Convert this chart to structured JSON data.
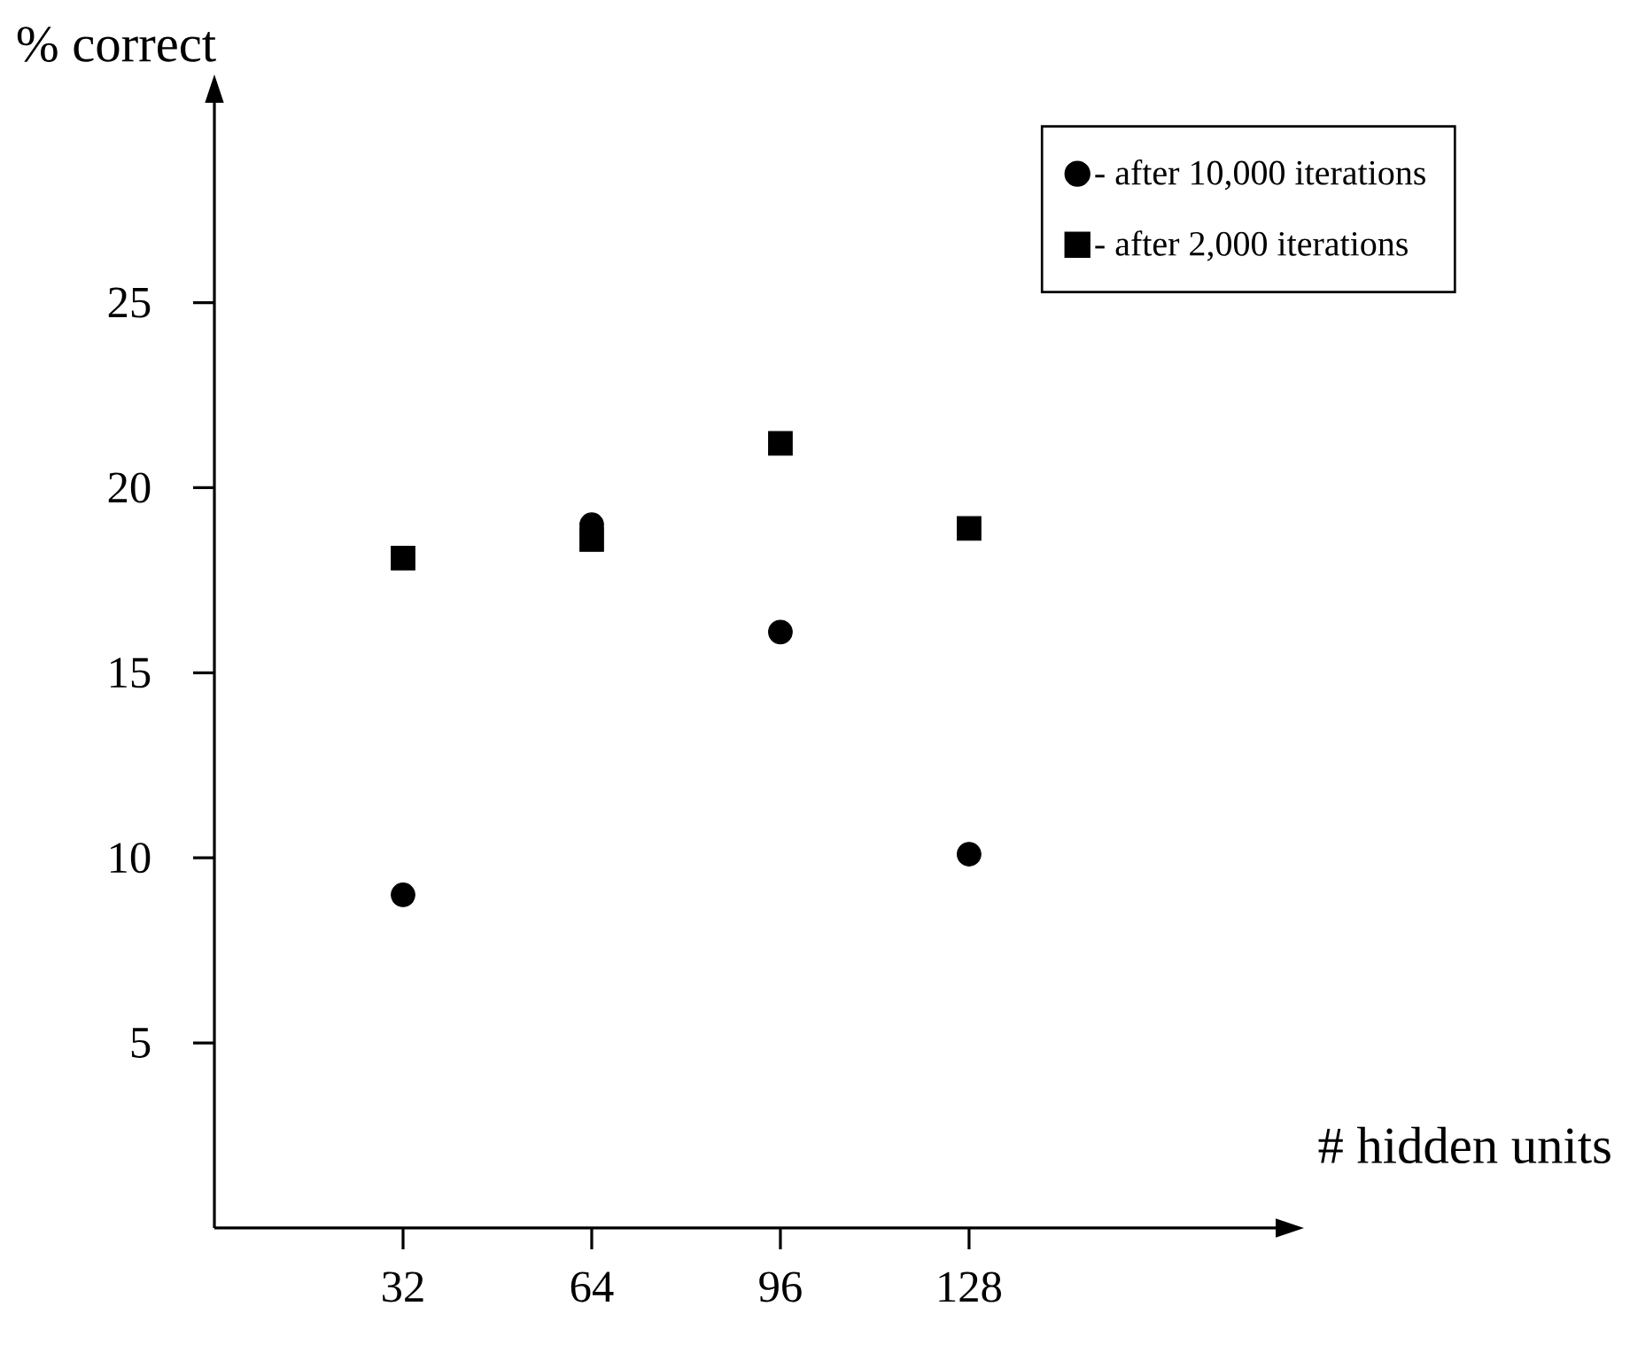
{
  "chart_data": {
    "type": "scatter",
    "xlabel": "# hidden units",
    "ylabel": "% correct",
    "x": [
      32,
      64,
      96,
      128
    ],
    "series": [
      {
        "name": "- after 10,000 iterations",
        "color": "#000000",
        "marker": "circle",
        "values": [
          9.0,
          19.0,
          16.1,
          10.1
        ]
      },
      {
        "name": "- after 2,000 iterations",
        "color": "#000000",
        "marker": "square",
        "values": [
          18.1,
          18.6,
          21.2,
          18.9
        ]
      }
    ],
    "xlim": [
      0,
      180
    ],
    "ylim": [
      0,
      30.4
    ],
    "xticks": [
      32,
      64,
      96,
      128
    ],
    "yticks": [
      5,
      10,
      15,
      20,
      25
    ],
    "grid": false,
    "legend": "top right"
  }
}
